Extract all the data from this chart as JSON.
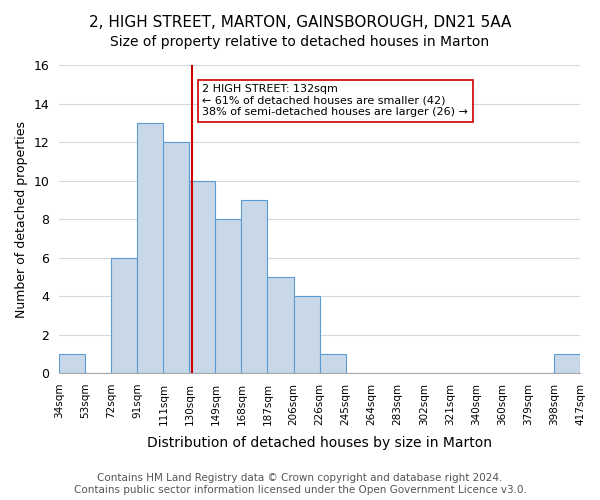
{
  "title1": "2, HIGH STREET, MARTON, GAINSBOROUGH, DN21 5AA",
  "title2": "Size of property relative to detached houses in Marton",
  "xlabel": "Distribution of detached houses by size in Marton",
  "ylabel": "Number of detached properties",
  "bin_edges": [
    34,
    53,
    72,
    91,
    111,
    130,
    149,
    168,
    187,
    206,
    226,
    245,
    264,
    283,
    302,
    321,
    340,
    360,
    379,
    398,
    417
  ],
  "bin_labels": [
    "34sqm",
    "53sqm",
    "72sqm",
    "91sqm",
    "111sqm",
    "130sqm",
    "149sqm",
    "168sqm",
    "187sqm",
    "206sqm",
    "226sqm",
    "245sqm",
    "264sqm",
    "283sqm",
    "302sqm",
    "321sqm",
    "340sqm",
    "360sqm",
    "379sqm",
    "398sqm",
    "417sqm"
  ],
  "counts": [
    1,
    0,
    6,
    13,
    12,
    10,
    8,
    9,
    5,
    4,
    1,
    0,
    0,
    0,
    0,
    0,
    0,
    0,
    0,
    1
  ],
  "bar_color": "#c8d8e8",
  "bar_edge_color": "#5b9bd5",
  "property_size": 132,
  "vline_color": "#cc0000",
  "annotation_text": "2 HIGH STREET: 132sqm\n← 61% of detached houses are smaller (42)\n38% of semi-detached houses are larger (26) →",
  "annotation_box_color": "#ffffff",
  "annotation_box_edge": "#cc0000",
  "ylim": [
    0,
    16
  ],
  "yticks": [
    0,
    2,
    4,
    6,
    8,
    10,
    12,
    14,
    16
  ],
  "footer_text": "Contains HM Land Registry data © Crown copyright and database right 2024.\nContains public sector information licensed under the Open Government Licence v3.0.",
  "bg_color": "#ffffff",
  "grid_color": "#d0d8e0",
  "title1_fontsize": 11,
  "title2_fontsize": 10,
  "xlabel_fontsize": 10,
  "ylabel_fontsize": 9,
  "footer_fontsize": 7.5
}
